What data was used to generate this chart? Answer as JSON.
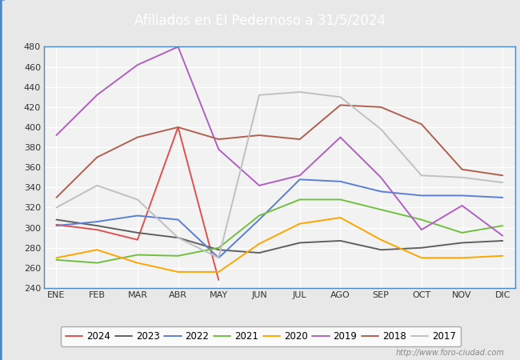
{
  "title": "Afiliados en El Pedernoso a 31/5/2024",
  "title_color": "white",
  "title_bg": "#4a86c8",
  "months": [
    "ENE",
    "FEB",
    "MAR",
    "ABR",
    "MAY",
    "JUN",
    "JUL",
    "AGO",
    "SEP",
    "OCT",
    "NOV",
    "DIC"
  ],
  "ylim": [
    240,
    480
  ],
  "yticks": [
    240,
    260,
    280,
    300,
    320,
    340,
    360,
    380,
    400,
    420,
    440,
    460,
    480
  ],
  "series": {
    "2024": {
      "color": "#e05050",
      "data": [
        303,
        298,
        288,
        400,
        248,
        null,
        null,
        null,
        null,
        null,
        null,
        null
      ]
    },
    "2023": {
      "color": "#606060",
      "data": [
        308,
        302,
        295,
        290,
        278,
        275,
        285,
        287,
        278,
        280,
        285,
        287
      ]
    },
    "2022": {
      "color": "#5b7fd4",
      "data": [
        302,
        306,
        312,
        308,
        270,
        308,
        348,
        346,
        336,
        332,
        332,
        330
      ]
    },
    "2021": {
      "color": "#70c040",
      "data": [
        268,
        265,
        273,
        272,
        280,
        312,
        328,
        328,
        318,
        308,
        295,
        302
      ]
    },
    "2020": {
      "color": "#ffa500",
      "data": [
        270,
        278,
        265,
        256,
        256,
        284,
        304,
        310,
        288,
        270,
        270,
        272
      ]
    },
    "2019": {
      "color": "#b060c0",
      "data": [
        392,
        432,
        462,
        480,
        378,
        342,
        352,
        390,
        350,
        298,
        322,
        292
      ]
    },
    "2018": {
      "color": "#b06050",
      "data": [
        330,
        370,
        390,
        400,
        388,
        392,
        388,
        422,
        420,
        403,
        358,
        352
      ]
    },
    "2017": {
      "color": "#c0c0c0",
      "data": [
        320,
        342,
        328,
        290,
        270,
        432,
        435,
        430,
        398,
        352,
        350,
        345
      ]
    }
  },
  "legend_order": [
    "2024",
    "2023",
    "2022",
    "2021",
    "2020",
    "2019",
    "2018",
    "2017"
  ],
  "watermark": "http://www.foro-ciudad.com",
  "bg_color": "#e8e8e8",
  "plot_bg": "#f2f2f2",
  "grid_color": "#ffffff",
  "outer_border_color": "#4a86c8"
}
